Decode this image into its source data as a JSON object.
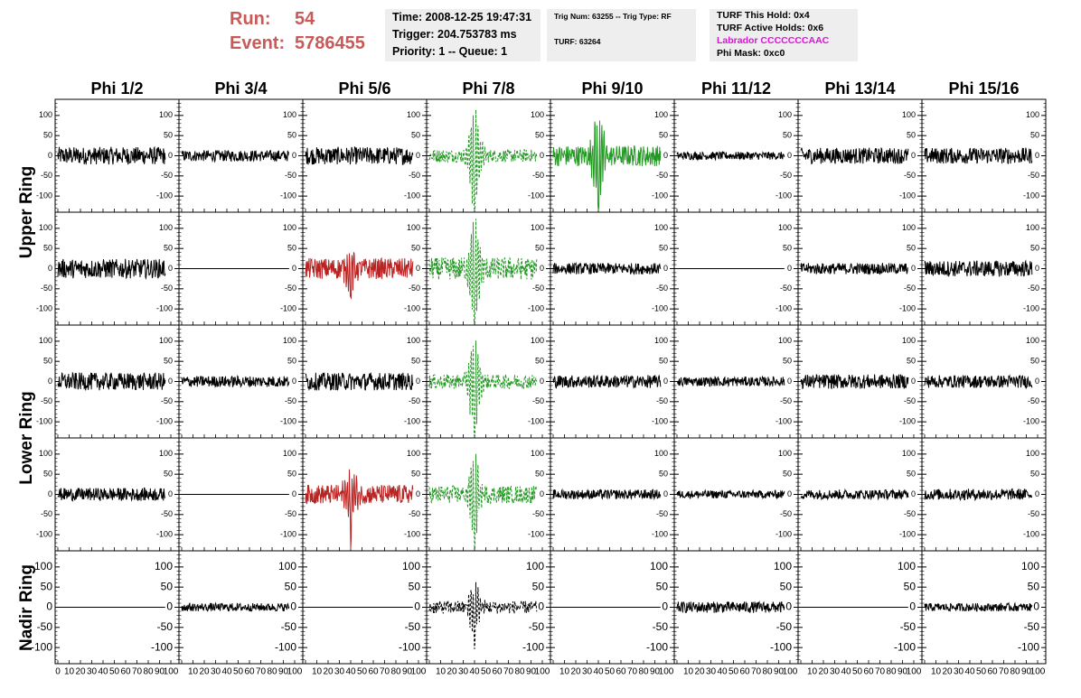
{
  "header": {
    "run_label": "Run:",
    "run_value": "54",
    "event_label": "Event:",
    "event_value": "5786455",
    "colors": {
      "run": "#c85a5a",
      "labrador": "#e010e0"
    }
  },
  "info_box_time": {
    "time": "Time: 2008-12-25 19:47:31",
    "trigger": "Trigger: 204.753783 ms",
    "priority": "Priority: 1 -- Queue: 1"
  },
  "info_box_trig": {
    "trig": "Trig Num: 63255 -- Trig Type: RF",
    "turf": "TURF: 63264"
  },
  "info_box_turf": {
    "this_hold": "TURF This Hold: 0x4",
    "active_holds": "TURF Active Holds: 0x6",
    "labrador": "Labrador CCCCCCCAAC",
    "phi_mask": "Phi Mask: 0xc0"
  },
  "chart_data": {
    "type": "line",
    "columns": [
      "Phi 1/2",
      "Phi 3/4",
      "Phi 5/6",
      "Phi 7/8",
      "Phi 9/10",
      "Phi 11/12",
      "Phi 13/14",
      "Phi 15/16"
    ],
    "ring_labels": [
      "Upper Ring",
      "Lower Ring",
      "Nadir Ring"
    ],
    "rows": 5,
    "ylim": [
      -140,
      140
    ],
    "yticks": [
      -100,
      -50,
      0,
      50,
      100
    ],
    "xlim": [
      0,
      100
    ],
    "xticks": [
      0,
      10,
      20,
      30,
      40,
      50,
      60,
      70,
      80,
      90,
      100
    ],
    "xtick_labels": [
      "0",
      "10",
      "20",
      "30",
      "40",
      "50",
      "60",
      "70",
      "80",
      "90",
      "100"
    ],
    "grid": false,
    "series_color_code": {
      "black": "#000000",
      "green": "#229922",
      "red": "#bb2222"
    },
    "panels": [
      [
        {
          "style": "black",
          "amp": 22,
          "pulse": 0,
          "dashed": false
        },
        {
          "style": "black",
          "amp": 14,
          "pulse": 0,
          "dashed": false
        },
        {
          "style": "black",
          "amp": 22,
          "pulse": 0,
          "dashed": false
        },
        {
          "style": "green",
          "amp": 16,
          "pulse": 120,
          "dashed": true
        },
        {
          "style": "green",
          "amp": 26,
          "pulse": 100,
          "dashed": false
        },
        {
          "style": "black",
          "amp": 10,
          "pulse": 0,
          "dashed": false
        },
        {
          "style": "black",
          "amp": 20,
          "pulse": 0,
          "dashed": false
        },
        {
          "style": "black",
          "amp": 20,
          "pulse": 0,
          "dashed": false
        }
      ],
      [
        {
          "style": "black",
          "amp": 24,
          "pulse": 0,
          "dashed": false
        },
        {
          "style": "flat",
          "amp": 0,
          "pulse": 0,
          "dashed": false
        },
        {
          "style": "red",
          "amp": 26,
          "pulse": 40,
          "dashed": false
        },
        {
          "style": "green",
          "amp": 28,
          "pulse": 130,
          "dashed": true
        },
        {
          "style": "black",
          "amp": 14,
          "pulse": 0,
          "dashed": false
        },
        {
          "style": "flat",
          "amp": 0,
          "pulse": 0,
          "dashed": false
        },
        {
          "style": "black",
          "amp": 14,
          "pulse": 0,
          "dashed": false
        },
        {
          "style": "black",
          "amp": 20,
          "pulse": 0,
          "dashed": false
        }
      ],
      [
        {
          "style": "black",
          "amp": 22,
          "pulse": 0,
          "dashed": false
        },
        {
          "style": "black",
          "amp": 14,
          "pulse": 0,
          "dashed": false
        },
        {
          "style": "black",
          "amp": 22,
          "pulse": 0,
          "dashed": false
        },
        {
          "style": "green",
          "amp": 18,
          "pulse": 110,
          "dashed": true
        },
        {
          "style": "black",
          "amp": 16,
          "pulse": 0,
          "dashed": false
        },
        {
          "style": "black",
          "amp": 12,
          "pulse": 0,
          "dashed": false
        },
        {
          "style": "black",
          "amp": 18,
          "pulse": 0,
          "dashed": false
        },
        {
          "style": "black",
          "amp": 16,
          "pulse": 0,
          "dashed": false
        }
      ],
      [
        {
          "style": "black",
          "amp": 16,
          "pulse": 0,
          "dashed": false
        },
        {
          "style": "flat",
          "amp": 0,
          "pulse": 0,
          "dashed": false
        },
        {
          "style": "red",
          "amp": 24,
          "pulse": 70,
          "dashed": false
        },
        {
          "style": "green",
          "amp": 22,
          "pulse": 90,
          "dashed": true
        },
        {
          "style": "black",
          "amp": 12,
          "pulse": 0,
          "dashed": false
        },
        {
          "style": "black",
          "amp": 10,
          "pulse": 0,
          "dashed": false
        },
        {
          "style": "black",
          "amp": 12,
          "pulse": 0,
          "dashed": false
        },
        {
          "style": "black",
          "amp": 14,
          "pulse": 0,
          "dashed": false
        }
      ],
      [
        {
          "style": "flat",
          "amp": 0,
          "pulse": 0,
          "dashed": false
        },
        {
          "style": "black",
          "amp": 10,
          "pulse": 0,
          "dashed": false
        },
        {
          "style": "flat",
          "amp": 0,
          "pulse": 0,
          "dashed": false
        },
        {
          "style": "black",
          "amp": 16,
          "pulse": 60,
          "dashed": true
        },
        {
          "style": "flat",
          "amp": 0,
          "pulse": 0,
          "dashed": false
        },
        {
          "style": "black",
          "amp": 14,
          "pulse": 0,
          "dashed": false
        },
        {
          "style": "flat",
          "amp": 0,
          "pulse": 0,
          "dashed": false
        },
        {
          "style": "black",
          "amp": 10,
          "pulse": 0,
          "dashed": false
        }
      ]
    ]
  }
}
